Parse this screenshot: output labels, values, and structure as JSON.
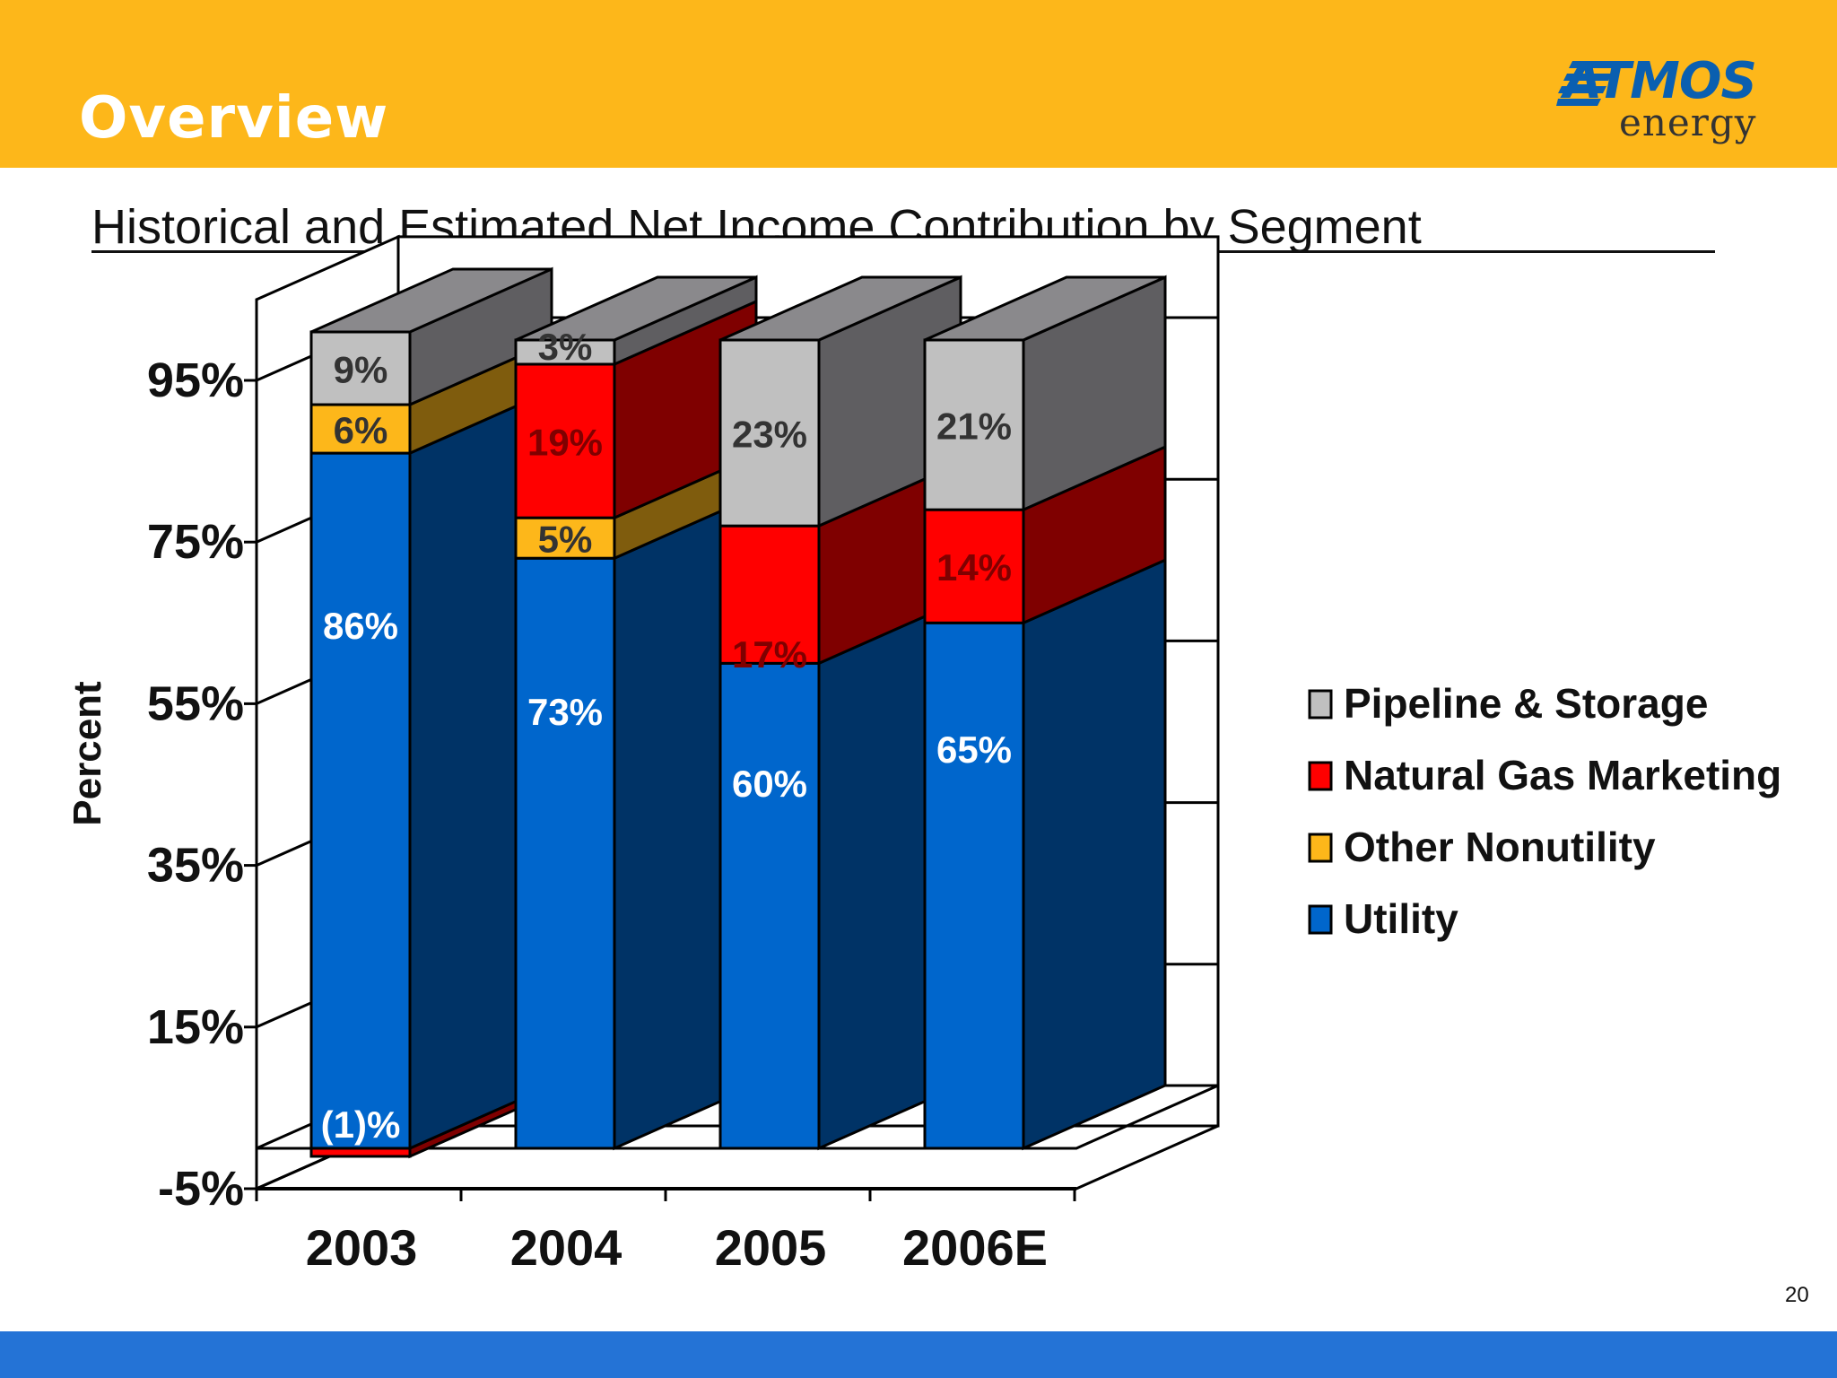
{
  "slide": {
    "title": "Overview",
    "subtitle": "Historical and Estimated Net Income Contribution by Segment",
    "page_number": "20"
  },
  "logo": {
    "word": "ATMOS",
    "sub": "energy"
  },
  "colors": {
    "header": "#FDB71A",
    "footer": "#2473D6",
    "pipeline": "#C0C0C0",
    "marketing": "#FF0000",
    "nonutility": "#FDB71A",
    "utility": "#0066CC"
  },
  "chart_data": {
    "type": "bar",
    "stacked": true,
    "style": "3d",
    "title": "Historical and Estimated Net Income Contribution by Segment",
    "xlabel": "",
    "ylabel": "Percent",
    "ylim": [
      -5,
      105
    ],
    "yticks": [
      -5,
      15,
      35,
      55,
      75,
      95
    ],
    "ytick_labels": [
      "-5%",
      "15%",
      "35%",
      "55%",
      "75%",
      "95%"
    ],
    "categories": [
      "2003",
      "2004",
      "2005",
      "2006E"
    ],
    "legend_position": "right",
    "series": [
      {
        "name": "Utility",
        "color": "#0066CC",
        "values": [
          86,
          73,
          60,
          65
        ],
        "labels": [
          "86%",
          "73%",
          "60%",
          "65%"
        ]
      },
      {
        "name": "Other Nonutility",
        "color": "#FDB71A",
        "values": [
          6,
          5,
          0,
          0
        ],
        "labels": [
          "6%",
          "5%",
          "",
          ""
        ]
      },
      {
        "name": "Natural Gas Marketing",
        "color": "#FF0000",
        "values": [
          -1,
          19,
          17,
          14
        ],
        "labels": [
          "(1)%",
          "19%",
          "17%",
          "14%"
        ]
      },
      {
        "name": "Pipeline & Storage",
        "color": "#C0C0C0",
        "values": [
          9,
          3,
          23,
          21
        ],
        "labels": [
          "9%",
          "3%",
          "23%",
          "21%"
        ]
      }
    ],
    "legend_order": [
      "Pipeline & Storage",
      "Natural Gas Marketing",
      "Other Nonutility",
      "Utility"
    ]
  }
}
